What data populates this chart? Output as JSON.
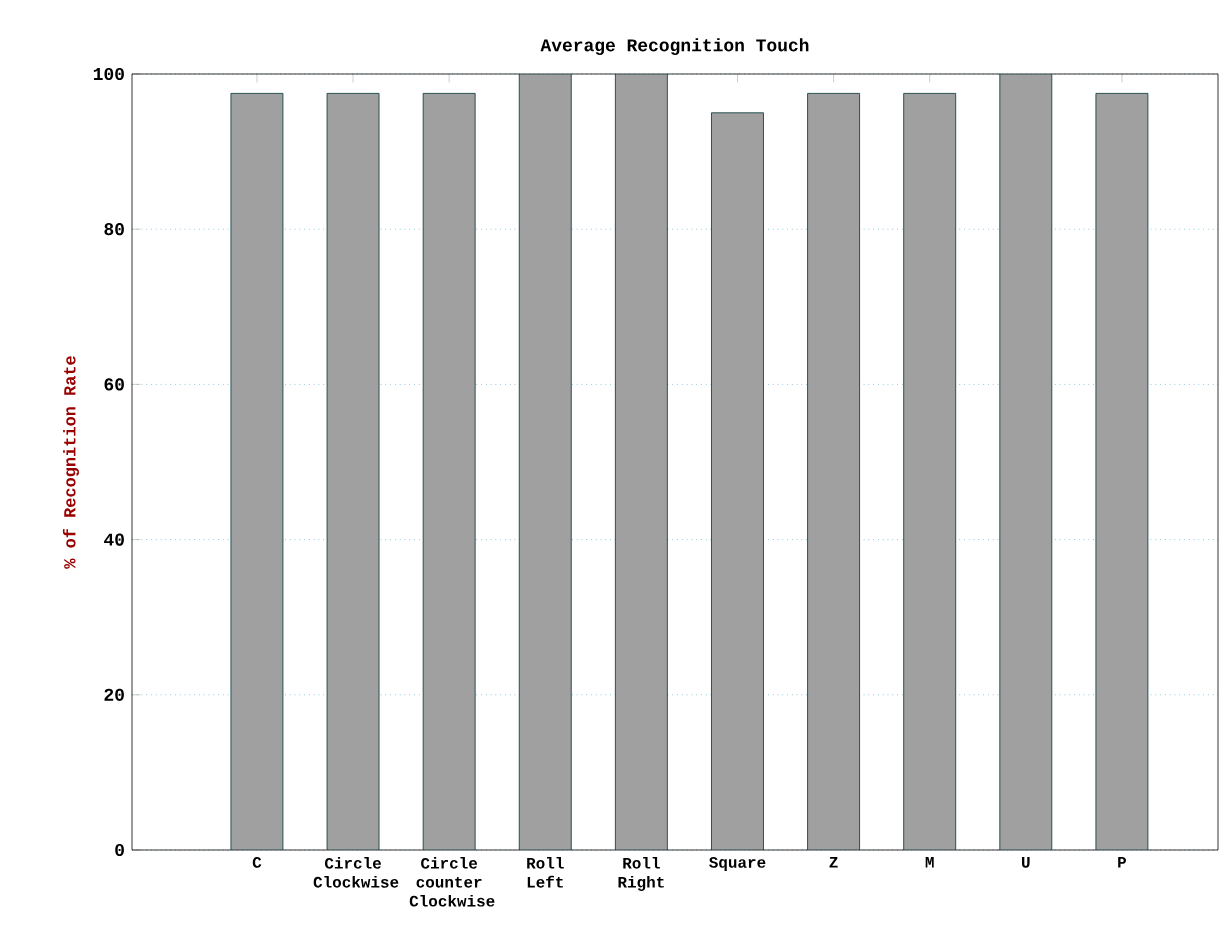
{
  "chart_data": {
    "type": "bar",
    "title": "Average Recognition Touch",
    "ylabel": "% of Recognition Rate",
    "categories": [
      "C",
      "Circle Clockwise",
      "Circle counter Clockwise",
      "Roll Left",
      "Roll Right",
      "Square",
      "Z",
      "M",
      "U",
      "P"
    ],
    "values": [
      97.5,
      97.5,
      97.5,
      100,
      100,
      95,
      97.5,
      97.5,
      100,
      97.5
    ],
    "color": "#a0a0a0",
    "ylim": [
      0,
      100
    ],
    "yticks": [
      0,
      20,
      40,
      60,
      80,
      100
    ],
    "grid": "y"
  }
}
